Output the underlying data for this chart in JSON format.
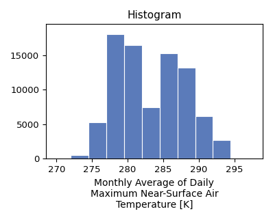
{
  "title": "Histogram",
  "xlabel": "Monthly Average of Daily\nMaximum Near-Surface Air\nTemperature [K]",
  "ylabel": "",
  "bar_color": "#5b7bba",
  "bin_start": 272,
  "bin_width": 2.5,
  "bar_heights": [
    500,
    5300,
    18000,
    16500,
    7500,
    15300,
    13200,
    6200,
    2700
  ],
  "xlim": [
    268.5,
    299
  ],
  "ylim": [
    0,
    19500
  ],
  "xticks": [
    270,
    275,
    280,
    285,
    290,
    295
  ],
  "yticks": [
    0,
    5000,
    10000,
    15000
  ],
  "title_fontsize": 11,
  "xlabel_fontsize": 10,
  "tick_fontsize": 9.5
}
